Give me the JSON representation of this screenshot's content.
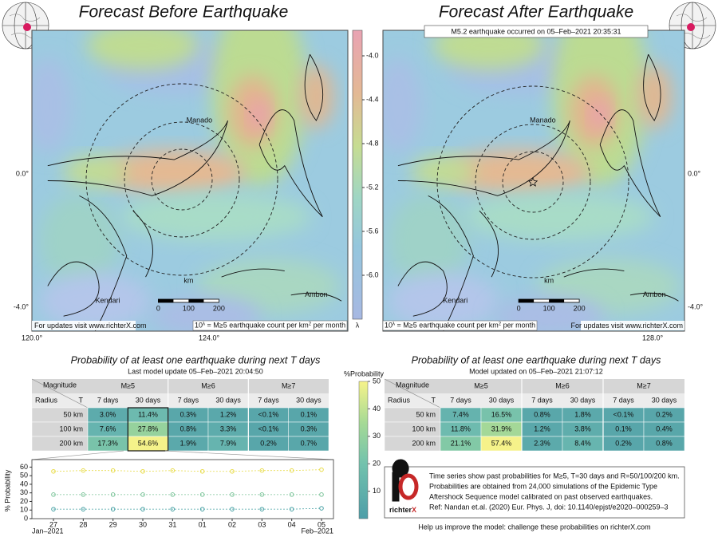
{
  "maps": [
    {
      "title": "Forecast Before Earthquake",
      "places": [
        "Manado",
        "Kendari",
        "Ambon"
      ],
      "scale": {
        "unit": "km",
        "ticks": [
          "0",
          "100",
          "200"
        ]
      },
      "lat_labels": [
        "0.0°",
        "-4.0°"
      ],
      "lon_labels": [
        "120.0°",
        "124.0°"
      ],
      "site_note": "For updates visit www.richterX.com",
      "legend_note": {
        "base": "10",
        "exp": "λ",
        "text": " = M≥5 earthquake count per km",
        "sup": "2",
        "tail": " per month"
      }
    },
    {
      "title": "Forecast After Earthquake",
      "event": "M5.2 earthquake occurred on 05–Feb–2021 20:35:31",
      "places": [
        "Manado",
        "Kendari",
        "Ambon"
      ],
      "scale": {
        "unit": "km",
        "ticks": [
          "0",
          "100",
          "200"
        ]
      },
      "lat_labels": [
        "0.0°",
        "-4.0°"
      ],
      "lon_labels": [
        "128.0°"
      ],
      "site_note": "For updates visit www.richterX.com",
      "legend_note": {
        "base": "10",
        "exp": "λ",
        "text": " = M≥5 earthquake count per km",
        "sup": "2",
        "tail": " per month"
      }
    }
  ],
  "rate_colorbar": {
    "ticks": [
      "-4.0",
      "-4.4",
      "-4.8",
      "-5.2",
      "-5.6",
      "-6.0"
    ],
    "label": "λ"
  },
  "tables": [
    {
      "title": "Probability of at least one earthquake during next T days",
      "updated": "Last model update 05–Feb–2021 20:04:50",
      "header": [
        "Magnitude",
        "M≥5",
        "M≥6",
        "M≥7"
      ],
      "subheader": [
        "Radius",
        "T",
        "7 days",
        "30 days",
        "7 days",
        "30 days",
        "7 days",
        "30 days"
      ],
      "rows": [
        [
          "50 km",
          "3.0%",
          "11.4%",
          "0.3%",
          "1.2%",
          "<0.1%",
          "0.1%"
        ],
        [
          "100 km",
          "7.6%",
          "27.8%",
          "0.8%",
          "3.3%",
          "<0.1%",
          "0.3%"
        ],
        [
          "200 km",
          "17.3%",
          "54.6%",
          "1.9%",
          "7.9%",
          "0.2%",
          "0.7%"
        ]
      ]
    },
    {
      "title": "Probability of at least one earthquake during next T days",
      "updated": "Model updated on 05–Feb–2021 21:07:12",
      "header": [
        "Magnitude",
        "M≥5",
        "M≥6",
        "M≥7"
      ],
      "subheader": [
        "Radius",
        "T",
        "7 days",
        "30 days",
        "7 days",
        "30 days",
        "7 days",
        "30 days"
      ],
      "rows": [
        [
          "50 km",
          "7.4%",
          "16.5%",
          "0.8%",
          "1.8%",
          "<0.1%",
          "0.2%"
        ],
        [
          "100 km",
          "11.8%",
          "31.9%",
          "1.2%",
          "3.8%",
          "0.1%",
          "0.4%"
        ],
        [
          "200 km",
          "21.1%",
          "57.4%",
          "2.3%",
          "8.4%",
          "0.2%",
          "0.8%"
        ]
      ]
    }
  ],
  "prob_colorbar": {
    "label": "%Probability",
    "lim": [
      0,
      50
    ],
    "ticks": [
      10,
      20,
      30,
      40,
      50
    ]
  },
  "chart_data": {
    "type": "line",
    "ylabel": "% Probability",
    "categories": [
      "27",
      "28",
      "29",
      "30",
      "31",
      "01",
      "02",
      "03",
      "04",
      "05"
    ],
    "x_annotations": [
      "Jan–2021",
      "Feb–2021"
    ],
    "series": [
      {
        "color": "#e8dc4a",
        "values": [
          55,
          56,
          56,
          55,
          56,
          55,
          55,
          56,
          56,
          57
        ]
      },
      {
        "color": "#7cc49a",
        "values": [
          28,
          28,
          28,
          28,
          28,
          28,
          28,
          28,
          28,
          28
        ]
      },
      {
        "color": "#4aa3a6",
        "values": [
          11,
          11,
          11,
          11,
          11,
          11,
          11,
          11,
          11,
          12
        ]
      }
    ],
    "ylim": [
      0,
      65
    ],
    "yticks": [
      0,
      10,
      20,
      30,
      40,
      50,
      60
    ]
  },
  "info": {
    "logo": [
      "richter",
      "X"
    ],
    "lines": [
      "Time series show past probabilities for M≥5, T=30 days and R=50/100/200 km.",
      "Probabilities are obtained from 24,000 simulations of the Epidemic Type",
      "Aftershock Sequence model calibrated on past observed earthquakes.",
      "Ref: Nandan et.al. (2020) Eur. Phys. J, doi: 10.1140/epjst/e2020–000259–3"
    ]
  },
  "footer": "Help us improve the model: challenge these probabilities on richterX.com"
}
